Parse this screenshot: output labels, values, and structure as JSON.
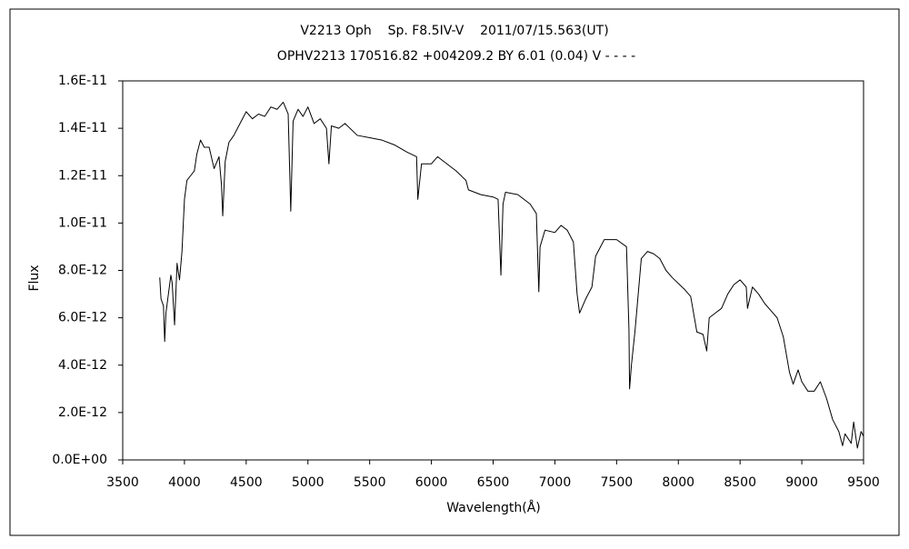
{
  "chart_data": {
    "type": "line",
    "title": "V2213 Oph    Sp. F8.5IV-V    2011/07/15.563(UT)",
    "subtitle": "OPHV2213 170516.82 +004209.2 BY 6.01 (0.04) V - - - -",
    "x_label": "Wavelength(Å)",
    "y_label": "Flux",
    "color": "#000000",
    "grid": false,
    "xlim": [
      3500,
      9500
    ],
    "xticks": [
      3500,
      4000,
      4500,
      5000,
      5500,
      6000,
      6500,
      7000,
      7500,
      8000,
      8500,
      9000,
      9500
    ],
    "ylim": [
      0,
      1.6e-11
    ],
    "yticks": [
      {
        "value": 0,
        "label": "0.0E+00"
      },
      {
        "value": 2e-12,
        "label": "2.0E-12"
      },
      {
        "value": 4e-12,
        "label": "4.0E-12"
      },
      {
        "value": 6e-12,
        "label": "6.0E-12"
      },
      {
        "value": 8e-12,
        "label": "8.0E-12"
      },
      {
        "value": 1e-11,
        "label": "1.0E-11"
      },
      {
        "value": 1.2e-11,
        "label": "1.2E-11"
      },
      {
        "value": 1.4e-11,
        "label": "1.4E-11"
      },
      {
        "value": 1.6e-11,
        "label": "1.6E-11"
      }
    ],
    "x": [
      3800,
      3810,
      3830,
      3840,
      3850,
      3870,
      3890,
      3900,
      3920,
      3940,
      3960,
      3980,
      4000,
      4020,
      4050,
      4080,
      4100,
      4130,
      4160,
      4200,
      4240,
      4280,
      4300,
      4310,
      4330,
      4360,
      4400,
      4450,
      4500,
      4550,
      4600,
      4650,
      4700,
      4750,
      4800,
      4840,
      4861,
      4880,
      4920,
      4960,
      5000,
      5050,
      5100,
      5150,
      5170,
      5190,
      5250,
      5300,
      5400,
      5500,
      5600,
      5700,
      5800,
      5880,
      5890,
      5920,
      6000,
      6050,
      6100,
      6200,
      6280,
      6300,
      6400,
      6500,
      6540,
      6563,
      6580,
      6600,
      6700,
      6800,
      6850,
      6870,
      6880,
      6920,
      7000,
      7050,
      7100,
      7150,
      7180,
      7200,
      7250,
      7300,
      7330,
      7400,
      7500,
      7580,
      7600,
      7605,
      7620,
      7650,
      7700,
      7750,
      7800,
      7850,
      7900,
      7950,
      8050,
      8100,
      8150,
      8200,
      8230,
      8250,
      8300,
      8350,
      8400,
      8450,
      8500,
      8550,
      8560,
      8600,
      8650,
      8700,
      8750,
      8800,
      8850,
      8900,
      8930,
      8970,
      9000,
      9050,
      9100,
      9150,
      9200,
      9250,
      9300,
      9330,
      9350,
      9400,
      9420,
      9450,
      9480,
      9500
    ],
    "values": [
      7.7e-12,
      6.8e-12,
      6.5e-12,
      5e-12,
      6.2e-12,
      7e-12,
      7.8e-12,
      7.5e-12,
      5.7e-12,
      8.3e-12,
      7.6e-12,
      8.8e-12,
      1.1e-11,
      1.18e-11,
      1.2e-11,
      1.22e-11,
      1.29e-11,
      1.35e-11,
      1.32e-11,
      1.32e-11,
      1.23e-11,
      1.28e-11,
      1.16e-11,
      1.03e-11,
      1.26e-11,
      1.34e-11,
      1.37e-11,
      1.42e-11,
      1.47e-11,
      1.44e-11,
      1.46e-11,
      1.45e-11,
      1.49e-11,
      1.48e-11,
      1.51e-11,
      1.46e-11,
      1.05e-11,
      1.43e-11,
      1.48e-11,
      1.45e-11,
      1.49e-11,
      1.42e-11,
      1.44e-11,
      1.4e-11,
      1.25e-11,
      1.41e-11,
      1.4e-11,
      1.42e-11,
      1.37e-11,
      1.36e-11,
      1.35e-11,
      1.33e-11,
      1.3e-11,
      1.28e-11,
      1.1e-11,
      1.25e-11,
      1.25e-11,
      1.28e-11,
      1.26e-11,
      1.22e-11,
      1.18e-11,
      1.14e-11,
      1.12e-11,
      1.11e-11,
      1.1e-11,
      7.8e-12,
      1.08e-11,
      1.13e-11,
      1.12e-11,
      1.08e-11,
      1.04e-11,
      7.1e-12,
      9e-12,
      9.7e-12,
      9.6e-12,
      9.9e-12,
      9.7e-12,
      9.2e-12,
      7e-12,
      6.2e-12,
      6.8e-12,
      7.3e-12,
      8.6e-12,
      9.3e-12,
      9.3e-12,
      9e-12,
      5.5e-12,
      3e-12,
      4e-12,
      5.5e-12,
      8.5e-12,
      8.8e-12,
      8.7e-12,
      8.5e-12,
      8e-12,
      7.7e-12,
      7.2e-12,
      6.9e-12,
      5.4e-12,
      5.3e-12,
      4.6e-12,
      6e-12,
      6.2e-12,
      6.4e-12,
      7e-12,
      7.4e-12,
      7.6e-12,
      7.3e-12,
      6.4e-12,
      7.3e-12,
      7e-12,
      6.6e-12,
      6.3e-12,
      6e-12,
      5.2e-12,
      3.7e-12,
      3.2e-12,
      3.8e-12,
      3.3e-12,
      2.9e-12,
      2.9e-12,
      3.3e-12,
      2.6e-12,
      1.7e-12,
      1.2e-12,
      6e-13,
      1.1e-12,
      7e-13,
      1.6e-12,
      5e-13,
      1.2e-12,
      1e-12
    ]
  }
}
